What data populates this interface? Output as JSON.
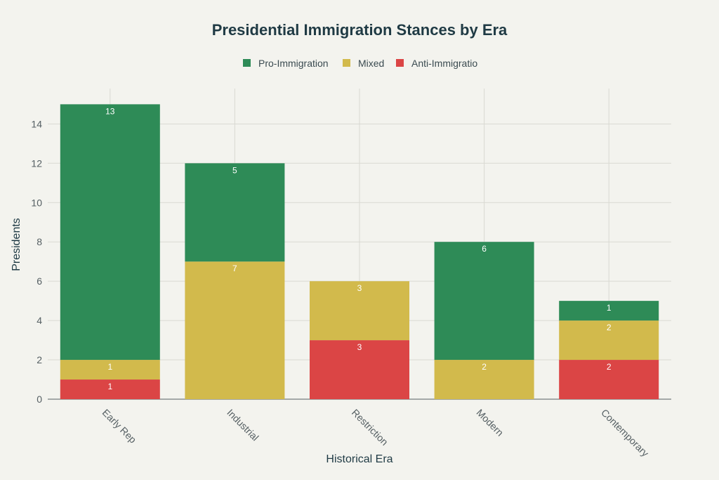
{
  "chart_data": {
    "type": "bar",
    "stacked": true,
    "title": "Presidential Immigration Stances by Era",
    "xlabel": "Historical Era",
    "ylabel": "Presidents",
    "ylim": [
      0,
      15.8
    ],
    "yticks": [
      0,
      2,
      4,
      6,
      8,
      10,
      12,
      14
    ],
    "grid": true,
    "legend_position": "top-center",
    "categories": [
      "Early Rep",
      "Industrial",
      "Restriction",
      "Modern",
      "Contemporary"
    ],
    "series": [
      {
        "name": "Anti-Immigratio",
        "color": "#db4545",
        "values": [
          1,
          0,
          3,
          0,
          2
        ]
      },
      {
        "name": "Mixed",
        "color": "#d2ba4c",
        "values": [
          1,
          7,
          3,
          2,
          2
        ]
      },
      {
        "name": "Pro-Immigration",
        "color": "#2e8b57",
        "values": [
          13,
          5,
          0,
          6,
          1
        ]
      }
    ],
    "legend_order": [
      "Pro-Immigration",
      "Mixed",
      "Anti-Immigratio"
    ]
  }
}
